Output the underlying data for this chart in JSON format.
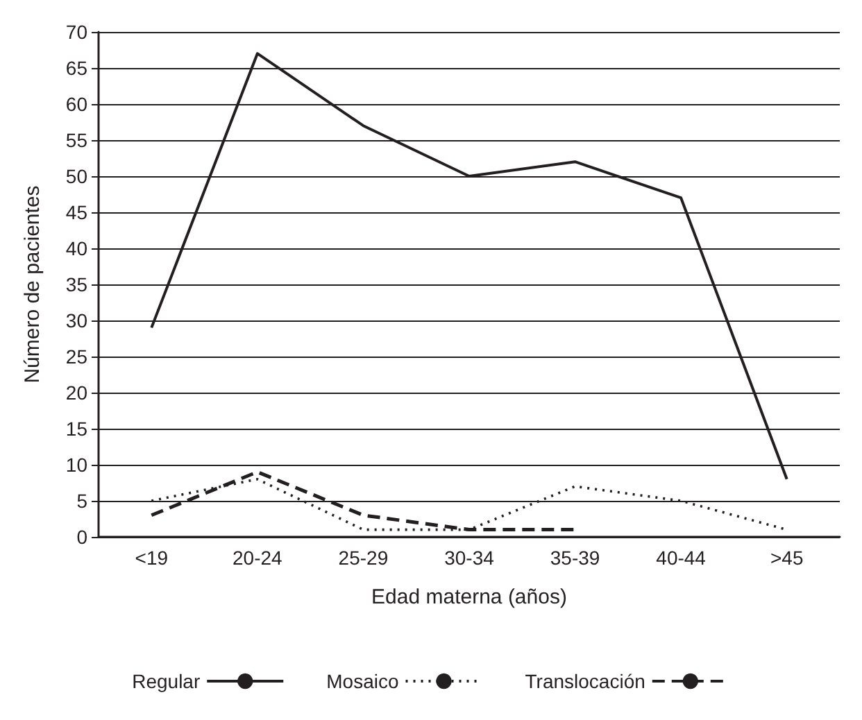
{
  "chart_data": {
    "type": "line",
    "xlabel": "Edad materna (años)",
    "ylabel": "Número de pacientes",
    "categories": [
      "<19",
      "20-24",
      "25-29",
      "30-34",
      "35-39",
      "40-44",
      ">45"
    ],
    "series": [
      {
        "name": "Regular",
        "color": "#231f20",
        "values": [
          29,
          67,
          57,
          50,
          52,
          47,
          8
        ],
        "line_style": "solid"
      },
      {
        "name": "Mosaico",
        "color": "#231f20",
        "values": [
          5,
          8,
          1,
          1,
          7,
          5,
          1
        ],
        "line_style": "dotted"
      },
      {
        "name": "Translocación",
        "color": "#231f20",
        "values": [
          3,
          9,
          3,
          1,
          1,
          null,
          null
        ],
        "line_style": "dashed"
      }
    ],
    "ylim": [
      0,
      70
    ],
    "yticks": [
      0,
      5,
      10,
      15,
      20,
      25,
      30,
      35,
      40,
      45,
      50,
      55,
      60,
      65,
      70
    ],
    "grid": "y",
    "legend": "bottom",
    "marker": "none"
  }
}
